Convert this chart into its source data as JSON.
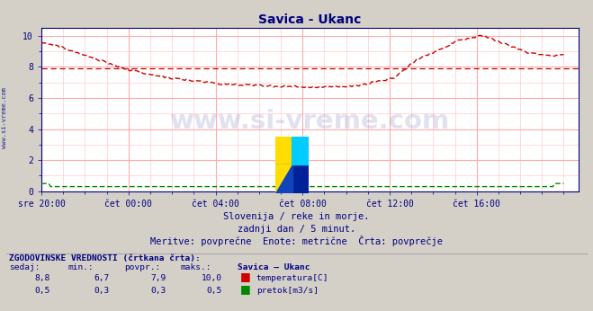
{
  "title": "Savica - Ukanc",
  "title_color": "#000080",
  "bg_color": "#d4d0c8",
  "plot_bg_color": "#ffffff",
  "grid_minor_color": "#ffcccc",
  "grid_major_color": "#ffaaaa",
  "xlabel_ticks": [
    "sre 20:00",
    "čet 00:00",
    "čet 04:00",
    "čet 08:00",
    "čet 12:00",
    "čet 16:00"
  ],
  "yticks": [
    0,
    2,
    4,
    6,
    8,
    10
  ],
  "ylim": [
    0,
    10.5
  ],
  "xlim": [
    0,
    296
  ],
  "avg_line_value": 7.9,
  "avg_line_color": "#cc0000",
  "temp_line_color": "#cc0000",
  "flow_line_color": "#008800",
  "watermark_text": "www.si-vreme.com",
  "watermark_color": "#1a1a8c",
  "watermark_alpha": 0.13,
  "subtitle1": "Slovenija / reke in morje.",
  "subtitle2": "zadnji dan / 5 minut.",
  "subtitle3": "Meritve: povprečne  Enote: metrične  Črta: povprečje",
  "subtitle_color": "#000080",
  "table_header": "ZGODOVINSKE VREDNOSTI (črtkana črta):",
  "col_headers": [
    "sedaj:",
    "min.:",
    "povpr.:",
    "maks.:",
    "Savica – Ukanc"
  ],
  "row1": [
    "8,8",
    "6,7",
    "7,9",
    "10,0",
    "temperatura[C]"
  ],
  "row2": [
    "0,5",
    "0,3",
    "0,3",
    "0,5",
    "pretok[m3/s]"
  ],
  "table_color": "#000080",
  "tick_color": "#000080",
  "axis_color": "#000080",
  "left_label": "www.si-vreme.com",
  "left_label_color": "#000080"
}
